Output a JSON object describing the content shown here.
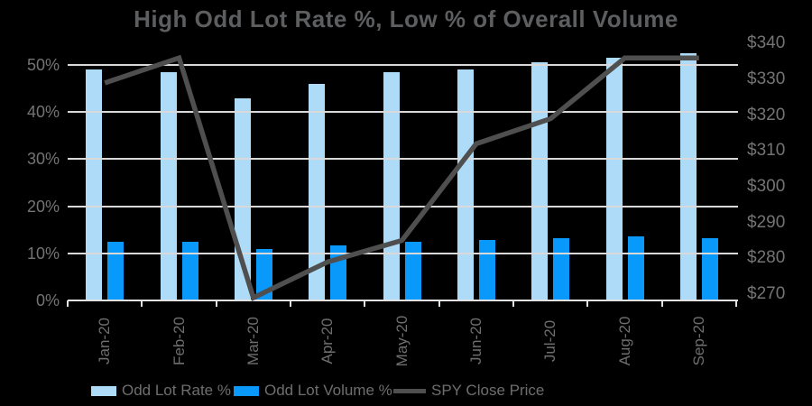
{
  "title": "High Odd Lot Rate %, Low % of Overall Volume",
  "colors": {
    "background": "#000000",
    "title_text": "#5d5e60",
    "axis_text": "#747474",
    "gridline": "#d9d9d9",
    "axis_line": "#e2e2e2",
    "bar_rate": "#aedcf8",
    "bar_volume": "#0999fb",
    "spy_line": "#4f4f4f"
  },
  "chart_data": {
    "type": "bar",
    "subtype": "combo-bar-line",
    "title": "High Odd Lot Rate %, Low % of Overall Volume",
    "categories": [
      "Jan-20",
      "Feb-20",
      "Mar-20",
      "Apr-20",
      "May-20",
      "Jun-20",
      "Jul-20",
      "Aug-20",
      "Sep-20"
    ],
    "series": [
      {
        "name": "Odd Lot Rate %",
        "type": "bar",
        "axis": "left",
        "values": [
          49,
          48.5,
          43,
          46,
          48.5,
          49,
          50.5,
          51.5,
          52.5
        ]
      },
      {
        "name": "Odd Lot Volume %",
        "type": "bar",
        "axis": "left",
        "values": [
          12.5,
          12.5,
          11,
          11.7,
          12.4,
          12.8,
          13.3,
          13.6,
          13.2
        ]
      },
      {
        "name": "SPY Close Price",
        "type": "line",
        "axis": "right",
        "values": [
          329,
          336,
          269,
          279,
          285,
          312,
          319,
          336,
          336
        ]
      }
    ],
    "left_axis": {
      "unit": "%",
      "min": 0,
      "max": 50,
      "tick_values": [
        0,
        10,
        20,
        30,
        40,
        50
      ],
      "tick_labels": [
        "0%",
        "10%",
        "20%",
        "30%",
        "40%",
        "50%"
      ]
    },
    "right_axis": {
      "unit": "$",
      "min": 270,
      "max": 340,
      "tick_values": [
        270,
        280,
        290,
        300,
        310,
        320,
        330,
        340
      ],
      "tick_labels": [
        "$270",
        "$280",
        "$290",
        "$300",
        "$310",
        "$320",
        "$330",
        "$340"
      ]
    },
    "grid": true,
    "legend_position": "bottom"
  },
  "legend": {
    "items": [
      {
        "label": "Odd Lot Rate %",
        "swatch": "bar",
        "color": "#aedcf8"
      },
      {
        "label": "Odd Lot Volume %",
        "swatch": "bar",
        "color": "#0999fb"
      },
      {
        "label": "SPY Close Price",
        "swatch": "line",
        "color": "#4f4f4f"
      }
    ]
  }
}
